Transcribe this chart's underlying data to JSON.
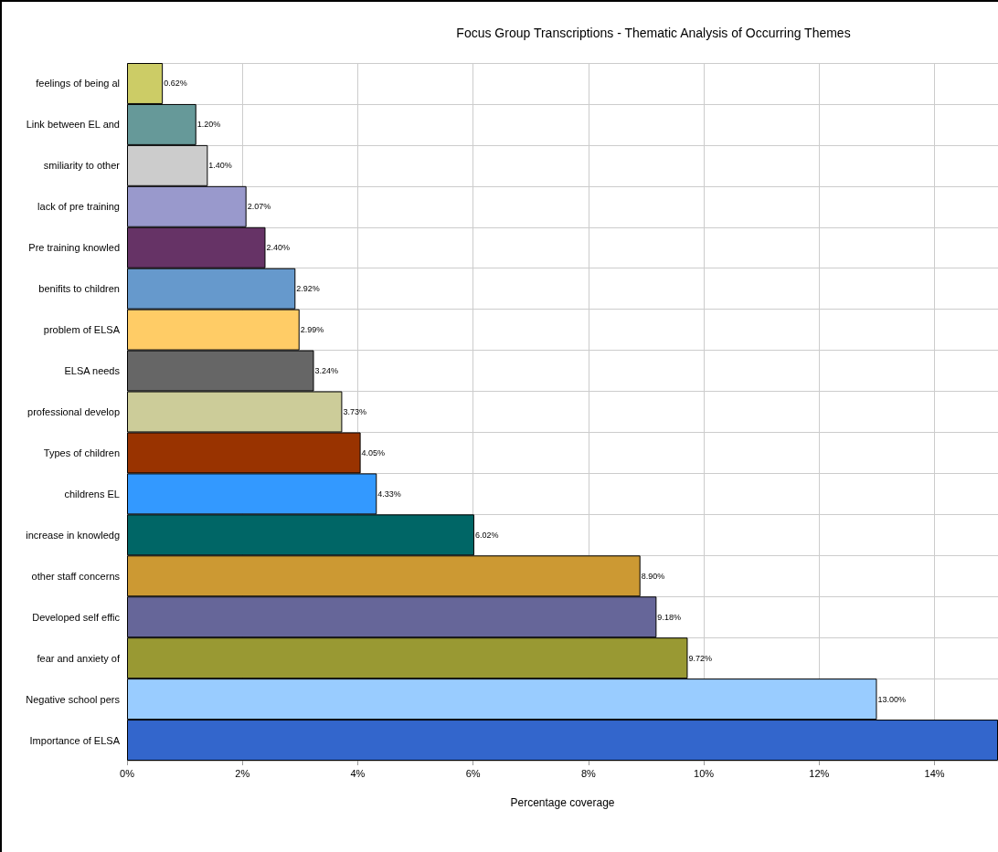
{
  "chart_data": {
    "type": "bar",
    "orientation": "horizontal",
    "title": "Focus Group Transcriptions - Thematic Analysis of Occurring Themes",
    "xlabel": "Percentage coverage",
    "categories": [
      "feelings of being al",
      "Link between EL and",
      "smiliarity to other",
      "lack of pre training",
      "Pre training knowled",
      "benifits to children",
      "problem of ELSA",
      "ELSA needs",
      "professional develop",
      "Types of children",
      "childrens EL",
      "increase in knowledg",
      "other staff concerns",
      "Developed self effic",
      "fear and anxiety of",
      "Negative school pers",
      "Importance of ELSA"
    ],
    "values": [
      0.62,
      1.2,
      1.4,
      2.07,
      2.4,
      2.92,
      2.99,
      3.24,
      3.73,
      4.05,
      4.33,
      6.02,
      8.9,
      9.18,
      9.72,
      13.0,
      15.1
    ],
    "value_labels": [
      "0.62%",
      "1.20%",
      "1.40%",
      "2.07%",
      "2.40%",
      "2.92%",
      "2.99%",
      "3.24%",
      "3.73%",
      "4.05%",
      "4.33%",
      "6.02%",
      "8.90%",
      "9.18%",
      "9.72%",
      "13.00%",
      null
    ],
    "colors": [
      "#cccc66",
      "#669999",
      "#cccccc",
      "#9999cc",
      "#663366",
      "#6699cc",
      "#ffcc66",
      "#666666",
      "#cccc99",
      "#993300",
      "#3399ff",
      "#006666",
      "#cc9933",
      "#666699",
      "#999933",
      "#99ccff",
      "#3366cc"
    ],
    "xlim": [
      0,
      15.1
    ],
    "xticks": [
      {
        "value": 0,
        "label": "0%"
      },
      {
        "value": 2,
        "label": "2%"
      },
      {
        "value": 4,
        "label": "4%"
      },
      {
        "value": 6,
        "label": "6%"
      },
      {
        "value": 8,
        "label": "8%"
      },
      {
        "value": 10,
        "label": "10%"
      },
      {
        "value": 12,
        "label": "12%"
      },
      {
        "value": 14,
        "label": "14%"
      }
    ],
    "grid": true
  }
}
